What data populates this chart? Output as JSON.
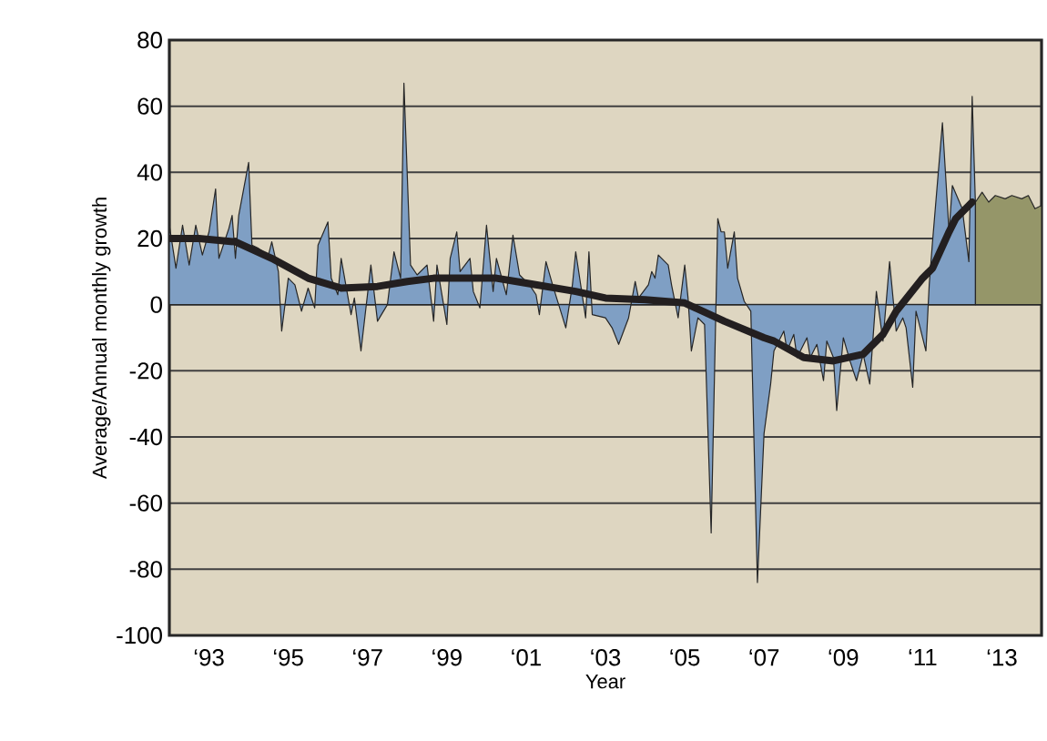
{
  "chart_data": {
    "type": "area",
    "xlabel": "Year",
    "ylabel": "Average/Annual monthly growth",
    "xlim": [
      "1992-01",
      "2014-01"
    ],
    "ylim": [
      -100,
      80
    ],
    "xticks": [
      {
        "value": "1993",
        "label": "‘93"
      },
      {
        "value": "1995",
        "label": "‘95"
      },
      {
        "value": "1997",
        "label": "‘97"
      },
      {
        "value": "1999",
        "label": "‘99"
      },
      {
        "value": "2001",
        "label": "‘01"
      },
      {
        "value": "2003",
        "label": "‘03"
      },
      {
        "value": "2005",
        "label": "‘05"
      },
      {
        "value": "2007",
        "label": "‘07"
      },
      {
        "value": "2009",
        "label": "‘09"
      },
      {
        "value": "2011",
        "label": "‘11"
      },
      {
        "value": "2013",
        "label": "‘13"
      }
    ],
    "yticks": [
      -100,
      -80,
      -60,
      -40,
      -20,
      0,
      20,
      40,
      60,
      80
    ],
    "grid": "y",
    "series": [
      {
        "color": "#7f9fc4",
        "x": [
          "1992-01",
          "1992-03",
          "1992-05",
          "1992-07",
          "1992-09",
          "1992-11",
          "1993-01",
          "1993-03",
          "1993-04",
          "1993-07",
          "1993-08",
          "1993-09",
          "1993-10",
          "1994-01",
          "1994-02",
          "1994-04",
          "1994-07",
          "1994-08",
          "1994-10",
          "1994-11",
          "1995-01",
          "1995-03",
          "1995-05",
          "1995-07",
          "1995-09",
          "1995-10",
          "1996-01",
          "1996-02",
          "1996-04",
          "1996-05",
          "1996-08",
          "1996-09",
          "1996-11",
          "1997-02",
          "1997-04",
          "1997-07",
          "1997-09",
          "1997-11",
          "1997-12",
          "1998-02",
          "1998-04",
          "1998-07",
          "1998-09",
          "1998-10",
          "1999-01",
          "1999-02",
          "1999-04",
          "1999-05",
          "1999-08",
          "1999-09",
          "1999-11",
          "2000-01",
          "2000-03",
          "2000-04",
          "2000-07",
          "2000-09",
          "2000-11",
          "2001-02",
          "2001-04",
          "2001-05",
          "2001-07",
          "2001-09",
          "2002-01",
          "2002-03",
          "2002-04",
          "2002-07",
          "2002-08",
          "2002-09",
          "2003-01",
          "2003-03",
          "2003-05",
          "2003-08",
          "2003-10",
          "2003-11",
          "2004-02",
          "2004-03",
          "2004-04",
          "2004-05",
          "2004-08",
          "2004-09",
          "2004-11",
          "2005-01",
          "2005-02",
          "2005-03",
          "2005-05",
          "2005-07",
          "2005-09",
          "2005-11",
          "2005-12",
          "2006-01",
          "2006-02",
          "2006-04",
          "2006-05",
          "2006-07",
          "2006-09",
          "2006-11",
          "2007-01",
          "2007-03",
          "2007-04",
          "2007-07",
          "2007-08",
          "2007-10",
          "2007-11",
          "2008-02",
          "2008-03",
          "2008-05",
          "2008-07",
          "2008-08",
          "2008-10",
          "2008-11",
          "2009-01",
          "2009-03",
          "2009-05",
          "2009-07",
          "2009-09",
          "2009-10",
          "2009-11",
          "2010-01",
          "2010-03",
          "2010-05",
          "2010-07",
          "2010-08",
          "2010-10",
          "2010-11",
          "2011-02",
          "2011-03",
          "2011-04",
          "2011-07",
          "2011-09",
          "2011-10",
          "2012-01",
          "2012-03",
          "2012-04",
          "2012-05"
        ],
        "values": [
          24,
          11,
          24,
          12,
          24,
          15,
          22,
          35,
          14,
          23,
          27,
          14,
          27,
          43,
          18,
          17,
          15,
          19,
          10,
          -8,
          8,
          6,
          -2,
          5,
          -1,
          18,
          25,
          8,
          3,
          14,
          -3,
          2,
          -14,
          12,
          -5,
          0,
          16,
          8,
          67,
          12,
          9,
          12,
          -5,
          12,
          -6,
          14,
          22,
          10,
          14,
          4,
          -1,
          24,
          4,
          14,
          3,
          21,
          9,
          6,
          3,
          -3,
          13,
          6,
          -7,
          6,
          16,
          -4,
          16,
          -3,
          -4,
          -7,
          -12,
          -4,
          7,
          2,
          6,
          10,
          8,
          15,
          12,
          6,
          -4,
          12,
          2,
          -14,
          -4,
          -6,
          -69,
          26,
          22,
          22,
          11,
          22,
          8,
          1,
          -2,
          -84,
          -39,
          -24,
          -14,
          -8,
          -14,
          -9,
          -16,
          -10,
          -16,
          -12,
          -23,
          -11,
          -16,
          -32,
          -10,
          -17,
          -23,
          -15,
          -24,
          -10,
          4,
          -11,
          13,
          -8,
          -4,
          -7,
          -25,
          -2,
          -14,
          6,
          19,
          55,
          22,
          36,
          29,
          13,
          63,
          30
        ]
      },
      {
        "color": "#959669",
        "x": [
          "2012-05",
          "2012-07",
          "2012-09",
          "2012-11",
          "2013-02",
          "2013-04",
          "2013-07",
          "2013-09",
          "2013-11",
          "2014-01"
        ],
        "values": [
          31,
          34,
          31,
          33,
          32,
          33,
          32,
          33,
          29,
          30
        ]
      },
      {
        "type": "line",
        "color": "#231f20",
        "x": [
          "1992-01",
          "1992-10",
          "1993-09",
          "1994-08",
          "1995-07",
          "1996-05",
          "1997-04",
          "1998-01",
          "1998-09",
          "1999-08",
          "2000-04",
          "2001-01",
          "2002-04",
          "2003-01",
          "2004-01",
          "2005-01",
          "2006-01",
          "2007-01",
          "2007-04",
          "2008-01",
          "2008-10",
          "2009-07",
          "2010-01",
          "2010-05",
          "2011-01",
          "2011-04",
          "2011-09",
          "2011-11",
          "2012-04"
        ],
        "values": [
          20,
          20,
          19,
          14,
          8,
          5,
          5.5,
          7,
          8,
          8,
          8,
          6.5,
          4,
          2,
          1.5,
          0.5,
          -5,
          -10,
          -11,
          -16,
          -17,
          -15,
          -9,
          -2,
          8,
          11,
          22,
          26,
          31
        ]
      }
    ]
  }
}
